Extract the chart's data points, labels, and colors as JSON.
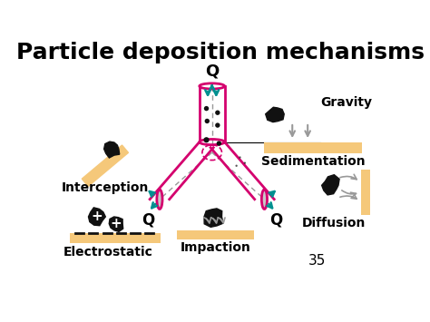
{
  "title": "Particle deposition mechanisms",
  "title_fontsize": 18,
  "title_fontweight": "bold",
  "background_color": "#ffffff",
  "page_number": "35",
  "labels": {
    "interception": "Interception",
    "electrostatic": "Electrostatic",
    "gravity": "Gravity",
    "sedimentation": "Sedimentation",
    "diffusion": "Diffusion",
    "impaction": "Impaction",
    "Q_top": "Q",
    "Q_left": "Q",
    "Q_right": "Q"
  },
  "colors": {
    "airway_pink": "#d4006e",
    "flow_teal": "#009090",
    "particle_black": "#111111",
    "surface_tan": "#f5c87a",
    "arrow_gray": "#999999",
    "text_black": "#000000",
    "minus_dark": "#111111",
    "plus_white": "#ffffff",
    "ellipse_gray": "#c8c8c8"
  }
}
